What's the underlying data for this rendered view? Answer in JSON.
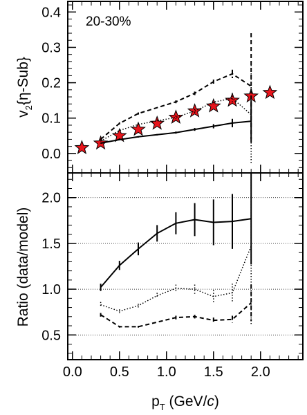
{
  "chart_data": [
    {
      "type": "scatter",
      "panel": "top",
      "annotation": "20-30%",
      "ylabel_main": "v",
      "ylabel_sub": "2",
      "ylabel_rest": "{η-Sub}",
      "xlim": [
        -0.05,
        2.45
      ],
      "ylim": [
        -0.055,
        0.43
      ],
      "y_ticks": [
        "0.0",
        "0.1",
        "0.2",
        "0.3",
        "0.4"
      ],
      "y_tick_values": [
        0.0,
        0.1,
        0.2,
        0.3,
        0.4
      ],
      "series": [
        {
          "style": "star-marker",
          "color": "#e8141b",
          "x": [
            0.1,
            0.3,
            0.5,
            0.7,
            0.9,
            1.1,
            1.3,
            1.5,
            1.7,
            1.9,
            2.1
          ],
          "y": [
            0.016,
            0.029,
            0.05,
            0.068,
            0.085,
            0.102,
            0.12,
            0.134,
            0.15,
            0.162,
            0.172
          ]
        },
        {
          "style": "dashed",
          "x": [
            0.3,
            0.5,
            0.7,
            1.1,
            1.3,
            1.5,
            1.7,
            1.9
          ],
          "y": [
            0.04,
            0.085,
            0.113,
            0.146,
            0.17,
            0.203,
            0.225,
            0.19
          ],
          "err": [
            0.002,
            0.003,
            0.003,
            0.004,
            0.005,
            0.006,
            0.012,
            0.15
          ]
        },
        {
          "style": "dotted",
          "x": [
            0.3,
            0.5,
            0.7,
            0.9,
            1.1,
            1.3,
            1.5,
            1.7,
            1.9
          ],
          "y": [
            0.035,
            0.065,
            0.082,
            0.092,
            0.102,
            0.12,
            0.145,
            0.156,
            0.11
          ],
          "err": [
            0.002,
            0.003,
            0.003,
            0.004,
            0.005,
            0.006,
            0.008,
            0.015,
            0.14
          ]
        },
        {
          "style": "solid",
          "x": [
            0.3,
            0.5,
            0.7,
            0.9,
            1.1,
            1.3,
            1.5,
            1.7,
            1.9
          ],
          "y": [
            0.029,
            0.039,
            0.047,
            0.053,
            0.059,
            0.068,
            0.077,
            0.086,
            0.091
          ],
          "err": [
            0.001,
            0.002,
            0.002,
            0.002,
            0.003,
            0.004,
            0.006,
            0.012,
            0.06
          ]
        }
      ]
    },
    {
      "type": "line",
      "panel": "bottom",
      "ylabel": "Ratio (data/model)",
      "xlabel_main": "p",
      "xlabel_sub": "T",
      "xlabel_rest": " (GeV/",
      "xlabel_italic": "c",
      "xlabel_close": ")",
      "xlim": [
        -0.05,
        2.45
      ],
      "ylim": [
        0.23,
        2.27
      ],
      "y_ticks": [
        "0.5",
        "1.0",
        "1.5",
        "2.0"
      ],
      "y_tick_values": [
        0.5,
        1.0,
        1.5,
        2.0
      ],
      "x_ticks": [
        "0.0",
        "0.5",
        "1.0",
        "1.5",
        "2.0"
      ],
      "x_tick_values": [
        0.0,
        0.5,
        1.0,
        1.5,
        2.0
      ],
      "grid_y": [
        0.5,
        1.0,
        1.5,
        2.0
      ],
      "series": [
        {
          "style": "solid",
          "x": [
            0.3,
            0.5,
            0.7,
            0.9,
            1.1,
            1.3,
            1.5,
            1.7,
            1.9
          ],
          "y": [
            1.02,
            1.26,
            1.44,
            1.61,
            1.72,
            1.76,
            1.73,
            1.74,
            1.77
          ],
          "err": [
            0.04,
            0.05,
            0.07,
            0.09,
            0.12,
            0.18,
            0.25,
            0.3,
            0.5
          ]
        },
        {
          "style": "dotted",
          "x": [
            0.3,
            0.5,
            0.7,
            0.9,
            1.1,
            1.3,
            1.5,
            1.7,
            1.9
          ],
          "y": [
            0.83,
            0.76,
            0.82,
            0.93,
            1.01,
            1.0,
            0.92,
            0.96,
            1.47
          ],
          "err": [
            0.03,
            0.02,
            0.02,
            0.03,
            0.04,
            0.05,
            0.07,
            0.1,
            0.85
          ]
        },
        {
          "style": "dashed",
          "x": [
            0.3,
            0.5,
            0.7,
            1.1,
            1.3,
            1.5,
            1.7,
            1.9
          ],
          "y": [
            0.72,
            0.59,
            0.59,
            0.69,
            0.7,
            0.66,
            0.67,
            0.85
          ],
          "err": [
            0.02,
            0.01,
            0.01,
            0.02,
            0.02,
            0.03,
            0.04,
            0.2
          ]
        }
      ]
    }
  ]
}
